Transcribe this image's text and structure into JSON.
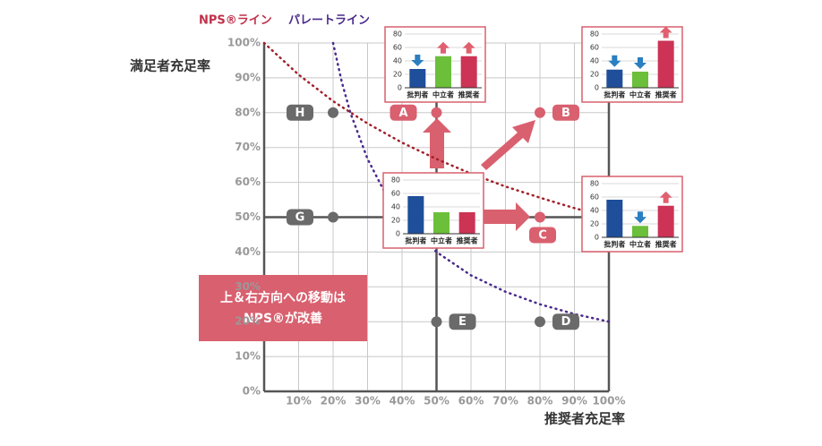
{
  "y_axis_title": "満足者充足率",
  "x_axis_title": "推奨者充足率",
  "xlim": [
    0,
    100
  ],
  "ylim": [
    0,
    100
  ],
  "xticks": [
    {
      "value": 10,
      "label": "10%"
    },
    {
      "value": 20,
      "label": "20%"
    },
    {
      "value": 30,
      "label": "30%"
    },
    {
      "value": 40,
      "label": "40%"
    },
    {
      "value": 50,
      "label": "50%"
    },
    {
      "value": 60,
      "label": "60%"
    },
    {
      "value": 70,
      "label": "70%"
    },
    {
      "value": 80,
      "label": "80%"
    },
    {
      "value": 90,
      "label": "90%"
    },
    {
      "value": 100,
      "label": "100%"
    }
  ],
  "yticks": [
    {
      "value": 0,
      "label": "0%"
    },
    {
      "value": 10,
      "label": "10%"
    },
    {
      "value": 20,
      "label": "20%"
    },
    {
      "value": 30,
      "label": "30%"
    },
    {
      "value": 40,
      "label": "40%"
    },
    {
      "value": 50,
      "label": "50%"
    },
    {
      "value": 60,
      "label": "60%"
    },
    {
      "value": 70,
      "label": "70%"
    },
    {
      "value": 80,
      "label": "80%"
    },
    {
      "value": 90,
      "label": "90%"
    },
    {
      "value": 100,
      "label": "100%"
    }
  ],
  "curves": [
    {
      "name": "NPS®ライン",
      "color": "#a3202a",
      "x": [
        0,
        10,
        20,
        30,
        40,
        50,
        60,
        70,
        80,
        90,
        100
      ],
      "y": [
        100,
        90.9,
        83.3,
        76.9,
        71.4,
        66.7,
        62.5,
        58.8,
        55.6,
        52.6,
        50
      ]
    },
    {
      "name": "パレートライン",
      "color": "#4a2a8c",
      "x": [
        20,
        22.5,
        25,
        30,
        35,
        40,
        50,
        60,
        70,
        80,
        90,
        100
      ],
      "y": [
        100,
        88.9,
        80,
        66.7,
        57.1,
        50,
        40,
        33.3,
        28.6,
        25,
        22.2,
        20
      ]
    }
  ],
  "points": [
    {
      "label": "H",
      "x": 20,
      "y": 80,
      "color": "#6a6a6a"
    },
    {
      "label": "A",
      "x": 50,
      "y": 80,
      "color": "#d9606f"
    },
    {
      "label": "B",
      "x": 80,
      "y": 80,
      "color": "#d9606f"
    },
    {
      "label": "G",
      "x": 20,
      "y": 50,
      "color": "#6a6a6a"
    },
    {
      "label": "C",
      "x": 80,
      "y": 50,
      "color": "#d9606f"
    },
    {
      "label": "E",
      "x": 50,
      "y": 20,
      "color": "#6a6a6a"
    },
    {
      "label": "D",
      "x": 80,
      "y": 20,
      "color": "#6a6a6a"
    }
  ],
  "note": [
    "上＆右方向への移動は",
    "NPS®が改善"
  ],
  "mini_charts": {
    "categories": [
      "批判者",
      "中立者",
      "推奨者"
    ],
    "colors": [
      "#1f4e9a",
      "#6bbf3a",
      "#cc3355"
    ],
    "ylim": [
      0,
      80
    ],
    "yticks": [
      0,
      20,
      40,
      60,
      80
    ],
    "charts": [
      {
        "values": [
          28,
          47,
          47
        ],
        "arrows": [
          "down",
          "up",
          "up"
        ]
      },
      {
        "values": [
          27,
          24,
          70
        ],
        "arrows": [
          "down",
          "down",
          "up"
        ]
      },
      {
        "values": [
          56,
          32,
          32
        ],
        "arrows": [
          null,
          null,
          null
        ]
      },
      {
        "values": [
          56,
          17,
          47
        ],
        "arrows": [
          null,
          "down",
          "up"
        ]
      }
    ]
  }
}
